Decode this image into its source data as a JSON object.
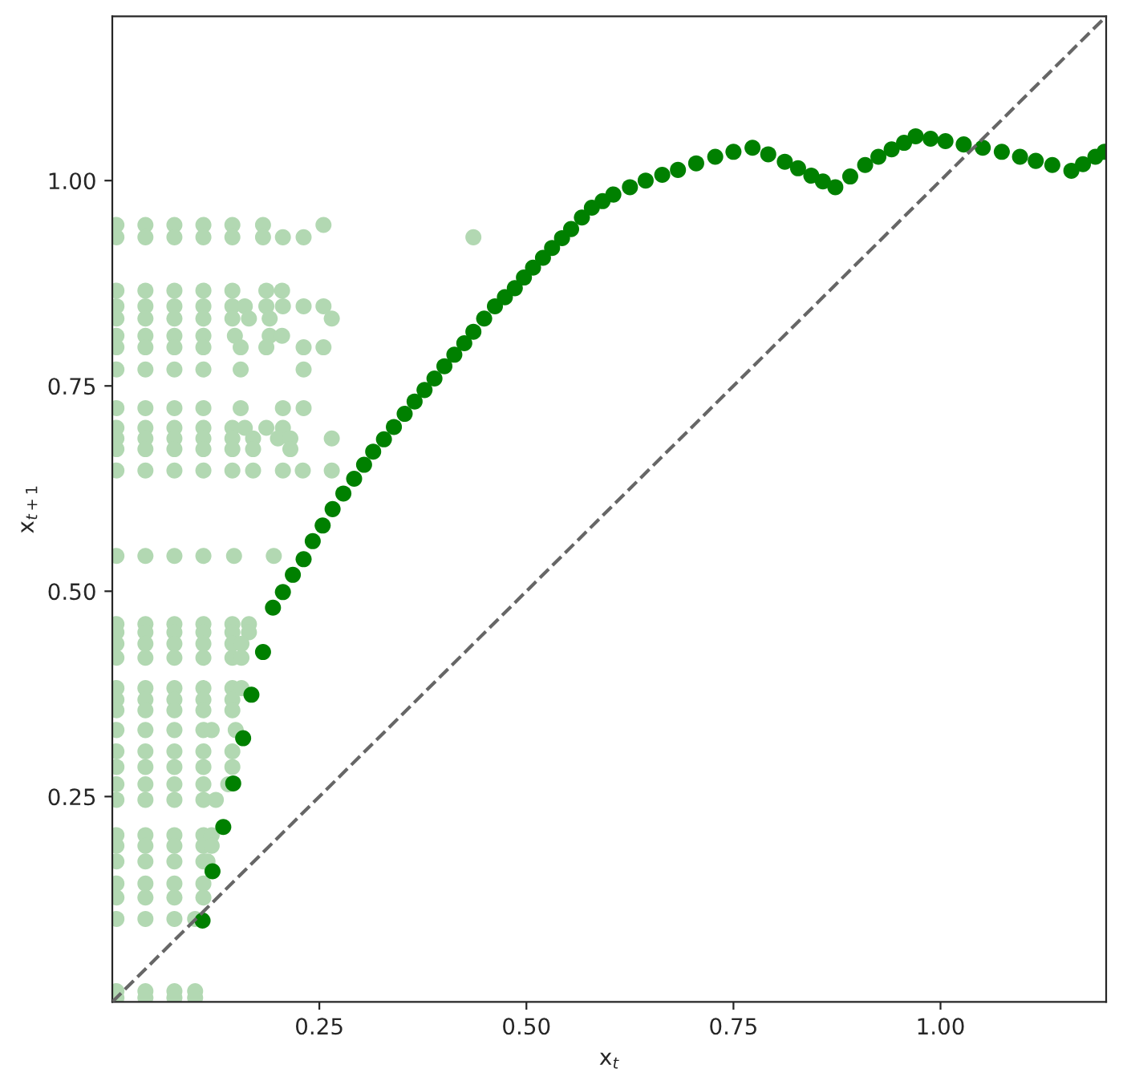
{
  "chart_data": {
    "type": "scatter",
    "xlabel": "x$_{t}$",
    "ylabel": "x$_{t+1}$",
    "xlim": [
      0,
      1.2
    ],
    "ylim": [
      0,
      1.2
    ],
    "xticks": [
      0.25,
      {
        "value": 0.5,
        "label": "0.50"
      },
      0.75,
      {
        "value": 1.0,
        "label": "1.00"
      }
    ],
    "yticks": [
      0.25,
      {
        "value": 0.5,
        "label": "0.50"
      },
      0.75,
      {
        "value": 1.0,
        "label": "1.00"
      }
    ],
    "grid": false,
    "marker": "circle",
    "series": [
      {
        "color": "#b2d8b2",
        "x": [
          0.005,
          0.04,
          0.075,
          0.11,
          0.145,
          0.182,
          0.255,
          0.005,
          0.04,
          0.075,
          0.11,
          0.145,
          0.182,
          0.206,
          0.231,
          0.436,
          0.005,
          0.04,
          0.075,
          0.11,
          0.145,
          0.186,
          0.205,
          0.005,
          0.04,
          0.075,
          0.11,
          0.145,
          0.16,
          0.186,
          0.206,
          0.231,
          0.255,
          0.005,
          0.04,
          0.075,
          0.11,
          0.145,
          0.165,
          0.19,
          0.265,
          0.005,
          0.04,
          0.075,
          0.11,
          0.148,
          0.19,
          0.205,
          0.005,
          0.04,
          0.075,
          0.11,
          0.155,
          0.186,
          0.231,
          0.255,
          0.005,
          0.04,
          0.075,
          0.11,
          0.155,
          0.231,
          0.005,
          0.04,
          0.075,
          0.11,
          0.155,
          0.206,
          0.231,
          0.005,
          0.04,
          0.075,
          0.11,
          0.145,
          0.16,
          0.186,
          0.206,
          0.005,
          0.04,
          0.075,
          0.11,
          0.145,
          0.17,
          0.2,
          0.215,
          0.265,
          0.005,
          0.04,
          0.075,
          0.11,
          0.145,
          0.17,
          0.215,
          0.005,
          0.04,
          0.075,
          0.11,
          0.145,
          0.17,
          0.206,
          0.23,
          0.265,
          0.005,
          0.04,
          0.075,
          0.11,
          0.147,
          0.195,
          0.005,
          0.04,
          0.075,
          0.11,
          0.145,
          0.165,
          0.005,
          0.04,
          0.075,
          0.11,
          0.145,
          0.165,
          0.005,
          0.04,
          0.075,
          0.11,
          0.145,
          0.156,
          0.005,
          0.04,
          0.075,
          0.11,
          0.145,
          0.156,
          0.005,
          0.04,
          0.075,
          0.11,
          0.145,
          0.156,
          0.005,
          0.04,
          0.075,
          0.11,
          0.145,
          0.005,
          0.04,
          0.075,
          0.11,
          0.145,
          0.005,
          0.04,
          0.075,
          0.11,
          0.12,
          0.149,
          0.005,
          0.04,
          0.075,
          0.11,
          0.145,
          0.005,
          0.04,
          0.075,
          0.11,
          0.145,
          0.005,
          0.04,
          0.075,
          0.11,
          0.14,
          0.005,
          0.04,
          0.075,
          0.11,
          0.125,
          0.005,
          0.04,
          0.075,
          0.11,
          0.12,
          0.005,
          0.04,
          0.075,
          0.11,
          0.12,
          0.005,
          0.04,
          0.075,
          0.11,
          0.115,
          0.005,
          0.04,
          0.075,
          0.11,
          0.005,
          0.04,
          0.075,
          0.11,
          0.005,
          0.04,
          0.075,
          0.1,
          0.005,
          0.04,
          0.075,
          0.1,
          0.005,
          0.04,
          0.075,
          0.1
        ],
        "values": [
          0.946,
          0.946,
          0.946,
          0.946,
          0.946,
          0.946,
          0.946,
          0.931,
          0.931,
          0.931,
          0.931,
          0.931,
          0.931,
          0.931,
          0.931,
          0.931,
          0.866,
          0.866,
          0.866,
          0.866,
          0.866,
          0.866,
          0.866,
          0.847,
          0.847,
          0.847,
          0.847,
          0.847,
          0.847,
          0.847,
          0.847,
          0.847,
          0.847,
          0.832,
          0.832,
          0.832,
          0.832,
          0.832,
          0.832,
          0.832,
          0.832,
          0.811,
          0.811,
          0.811,
          0.811,
          0.811,
          0.811,
          0.811,
          0.797,
          0.797,
          0.797,
          0.797,
          0.797,
          0.797,
          0.797,
          0.797,
          0.77,
          0.77,
          0.77,
          0.77,
          0.77,
          0.77,
          0.723,
          0.723,
          0.723,
          0.723,
          0.723,
          0.723,
          0.723,
          0.699,
          0.699,
          0.699,
          0.699,
          0.699,
          0.699,
          0.699,
          0.699,
          0.686,
          0.686,
          0.686,
          0.686,
          0.686,
          0.686,
          0.686,
          0.686,
          0.686,
          0.673,
          0.673,
          0.673,
          0.673,
          0.673,
          0.673,
          0.673,
          0.647,
          0.647,
          0.647,
          0.647,
          0.647,
          0.647,
          0.647,
          0.647,
          0.647,
          0.543,
          0.543,
          0.543,
          0.543,
          0.543,
          0.543,
          0.46,
          0.46,
          0.46,
          0.46,
          0.46,
          0.46,
          0.45,
          0.45,
          0.45,
          0.45,
          0.45,
          0.45,
          0.436,
          0.436,
          0.436,
          0.436,
          0.436,
          0.436,
          0.419,
          0.419,
          0.419,
          0.419,
          0.419,
          0.419,
          0.382,
          0.382,
          0.382,
          0.382,
          0.382,
          0.382,
          0.368,
          0.368,
          0.368,
          0.368,
          0.368,
          0.355,
          0.355,
          0.355,
          0.355,
          0.355,
          0.331,
          0.331,
          0.331,
          0.331,
          0.331,
          0.331,
          0.305,
          0.305,
          0.305,
          0.305,
          0.305,
          0.286,
          0.286,
          0.286,
          0.286,
          0.286,
          0.265,
          0.265,
          0.265,
          0.265,
          0.265,
          0.246,
          0.246,
          0.246,
          0.246,
          0.246,
          0.203,
          0.203,
          0.203,
          0.203,
          0.203,
          0.19,
          0.19,
          0.19,
          0.19,
          0.19,
          0.171,
          0.171,
          0.171,
          0.171,
          0.171,
          0.144,
          0.144,
          0.144,
          0.144,
          0.127,
          0.127,
          0.127,
          0.127,
          0.101,
          0.101,
          0.101,
          0.101,
          0.013,
          0.013,
          0.013,
          0.013,
          0.005,
          0.005,
          0.005,
          0.005
        ]
      },
      {
        "color": "#008000",
        "x": [
          0.109,
          0.121,
          0.134,
          0.146,
          0.158,
          0.168,
          0.182,
          0.194,
          0.206,
          0.218,
          0.231,
          0.242,
          0.254,
          0.266,
          0.279,
          0.292,
          0.304,
          0.315,
          0.328,
          0.34,
          0.353,
          0.365,
          0.377,
          0.389,
          0.401,
          0.413,
          0.425,
          0.436,
          0.449,
          0.462,
          0.474,
          0.486,
          0.497,
          0.508,
          0.52,
          0.531,
          0.543,
          0.554,
          0.567,
          0.579,
          0.592,
          0.605,
          0.625,
          0.644,
          0.664,
          0.683,
          0.705,
          0.728,
          0.75,
          0.773,
          0.792,
          0.812,
          0.828,
          0.844,
          0.858,
          0.873,
          0.891,
          0.909,
          0.925,
          0.941,
          0.956,
          0.97,
          0.988,
          1.006,
          1.028,
          1.051,
          1.074,
          1.096,
          1.115,
          1.135,
          1.158,
          1.172,
          1.187,
          1.198
        ],
        "values": [
          0.099,
          0.159,
          0.213,
          0.266,
          0.321,
          0.374,
          0.426,
          0.48,
          0.499,
          0.52,
          0.539,
          0.561,
          0.58,
          0.6,
          0.619,
          0.637,
          0.654,
          0.67,
          0.685,
          0.7,
          0.716,
          0.731,
          0.745,
          0.759,
          0.774,
          0.788,
          0.802,
          0.816,
          0.832,
          0.847,
          0.858,
          0.869,
          0.882,
          0.894,
          0.906,
          0.918,
          0.93,
          0.941,
          0.955,
          0.967,
          0.975,
          0.983,
          0.992,
          1.0,
          1.007,
          1.013,
          1.021,
          1.029,
          1.035,
          1.04,
          1.032,
          1.023,
          1.015,
          1.006,
          0.999,
          0.992,
          1.005,
          1.019,
          1.029,
          1.038,
          1.046,
          1.054,
          1.051,
          1.048,
          1.044,
          1.04,
          1.035,
          1.029,
          1.024,
          1.019,
          1.012,
          1.02,
          1.029,
          1.035
        ]
      },
      {
        "type": "line",
        "color": "#666666",
        "line_style": "dashed",
        "marker": "none",
        "x": [
          0,
          1.2
        ],
        "values": [
          0,
          1.2
        ]
      }
    ]
  }
}
